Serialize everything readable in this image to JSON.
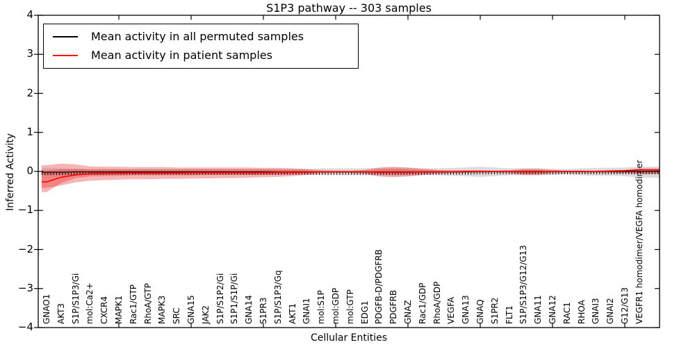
{
  "figure": {
    "title": "S1P3 pathway -- 303 samples",
    "xlabel": "Cellular Entities",
    "ylabel": "Inferred Activity",
    "ytick_labels": [
      "4",
      "3",
      "2",
      "1",
      "0",
      "−1",
      "−2",
      "−3",
      "−4"
    ],
    "legend": [
      {
        "label": "Mean activity in all permuted samples",
        "color": "#000000"
      },
      {
        "label": "Mean activity in patient samples",
        "color": "#ff0000"
      }
    ],
    "colors": {
      "axis": "#000000",
      "permuted_line": "#000000",
      "patient_line": "#ff0000",
      "permuted_band": "rgba(130,130,130,0.28)",
      "patient_band": "rgba(230,30,30,0.33)"
    }
  },
  "chart_data": {
    "type": "line",
    "title": "S1P3 pathway -- 303 samples",
    "xlabel": "Cellular Entities",
    "ylabel": "Inferred Activity",
    "ylim": [
      -4,
      4
    ],
    "yticks": [
      4,
      3,
      2,
      1,
      0,
      -1,
      -2,
      -3,
      -4
    ],
    "grid": false,
    "legend_position": "upper left",
    "xtick_mark_interval": 5,
    "categories": [
      "GNAO1",
      "AKT3",
      "S1P/S1P3/Gi",
      "mol:Ca2+",
      "CXCR4",
      "MAPK1",
      "Rac1/GTP",
      "RhoA/GTP",
      "MAPK3",
      "SRC",
      "GNA15",
      "JAK2",
      "S1P/S1P2/Gi",
      "S1P1/S1P/Gi",
      "GNA14",
      "S1PR3",
      "S1P/S1P3/Gq",
      "AKT1",
      "GNAI1",
      "mol:S1P",
      "mol:GDP",
      "mol:GTP",
      "EDG1",
      "PDGFB-D/PDGFRB",
      "PDGFRB",
      "GNAZ",
      "Rac1/GDP",
      "RhoA/GDP",
      "VEGFA",
      "GNA13",
      "GNAQ",
      "S1PR2",
      "FLT1",
      "S1P/S1P3/G12/G13",
      "GNA11",
      "GNA12",
      "RAC1",
      "RHOA",
      "GNAI3",
      "GNAI2",
      "G12/G13",
      "VEGFR1 homodimer/VEGFA homodimer"
    ],
    "series": [
      {
        "name": "Mean activity in all permuted samples",
        "color": "#000000",
        "values": [
          -0.02,
          -0.02,
          -0.01,
          -0.01,
          -0.01,
          -0.01,
          -0.01,
          -0.01,
          -0.01,
          -0.01,
          -0.01,
          -0.01,
          -0.01,
          -0.01,
          -0.01,
          -0.01,
          -0.01,
          -0.01,
          -0.01,
          -0.01,
          -0.01,
          -0.01,
          -0.01,
          -0.01,
          -0.01,
          -0.01,
          -0.01,
          -0.01,
          -0.01,
          -0.01,
          0,
          0,
          0,
          0,
          0,
          0,
          0,
          0,
          0,
          0,
          0,
          0
        ]
      },
      {
        "name": "Mean activity in patient samples",
        "color": "#ff0000",
        "values": [
          -0.27,
          -0.15,
          -0.09,
          -0.06,
          -0.05,
          -0.04,
          -0.04,
          -0.04,
          -0.04,
          -0.04,
          -0.03,
          -0.03,
          -0.03,
          -0.03,
          -0.03,
          -0.03,
          -0.02,
          -0.02,
          -0.02,
          -0.01,
          -0.01,
          -0.01,
          -0.01,
          -0.02,
          -0.02,
          -0.02,
          -0.01,
          -0.01,
          -0.01,
          0,
          0,
          0,
          0,
          -0.01,
          -0.01,
          0,
          0,
          0,
          0,
          0.01,
          0.02,
          0.04
        ]
      }
    ],
    "bands": [
      {
        "name": "permuted-samples-std-band",
        "color": "rgba(130,130,130,0.28)",
        "upper": [
          0.08,
          0.08,
          0.07,
          0.06,
          0.06,
          0.06,
          0.06,
          0.06,
          0.06,
          0.06,
          0.06,
          0.06,
          0.06,
          0.06,
          0.06,
          0.06,
          0.06,
          0.06,
          0.07,
          0.08,
          0.08,
          0.08,
          0.08,
          0.09,
          0.1,
          0.09,
          0.08,
          0.08,
          0.09,
          0.1,
          0.12,
          0.1,
          0.08,
          0.08,
          0.08,
          0.07,
          0.06,
          0.08,
          0.09,
          0.09,
          0.1,
          0.12
        ],
        "lower": [
          -0.1,
          -0.1,
          -0.09,
          -0.08,
          -0.08,
          -0.08,
          -0.08,
          -0.08,
          -0.08,
          -0.08,
          -0.08,
          -0.08,
          -0.08,
          -0.08,
          -0.08,
          -0.08,
          -0.08,
          -0.08,
          -0.09,
          -0.1,
          -0.1,
          -0.1,
          -0.1,
          -0.11,
          -0.12,
          -0.11,
          -0.1,
          -0.1,
          -0.11,
          -0.12,
          -0.14,
          -0.12,
          -0.1,
          -0.1,
          -0.1,
          -0.09,
          -0.08,
          -0.1,
          -0.11,
          -0.11,
          -0.12,
          -0.16
        ]
      },
      {
        "name": "patient-samples-std-band-outer",
        "color": "rgba(230,30,30,0.33)",
        "upper": [
          0.16,
          0.2,
          0.18,
          0.13,
          0.12,
          0.12,
          0.11,
          0.11,
          0.11,
          0.1,
          0.1,
          0.1,
          0.1,
          0.1,
          0.1,
          0.09,
          0.09,
          0.08,
          0.06,
          0.03,
          0.02,
          0.02,
          0.04,
          0.1,
          0.12,
          0.1,
          0.07,
          0.04,
          0.03,
          0.03,
          0.03,
          0.02,
          0.03,
          0.07,
          0.07,
          0.04,
          0.02,
          0.02,
          0.02,
          0.03,
          0.04,
          0.08
        ],
        "lower": [
          -0.42,
          -0.36,
          -0.28,
          -0.24,
          -0.22,
          -0.21,
          -0.2,
          -0.2,
          -0.19,
          -0.19,
          -0.18,
          -0.18,
          -0.17,
          -0.17,
          -0.16,
          -0.15,
          -0.14,
          -0.12,
          -0.09,
          -0.05,
          -0.04,
          -0.04,
          -0.06,
          -0.13,
          -0.15,
          -0.13,
          -0.09,
          -0.06,
          -0.05,
          -0.04,
          -0.04,
          -0.03,
          -0.04,
          -0.09,
          -0.09,
          -0.05,
          -0.04,
          -0.04,
          -0.04,
          -0.04,
          -0.05,
          -0.07
        ]
      },
      {
        "name": "patient-samples-std-band-inner",
        "color": "rgba(230,30,30,0.33)",
        "upper": [
          0.02,
          0.05,
          0.06,
          0.05,
          0.05,
          0.05,
          0.05,
          0.05,
          0.05,
          0.05,
          0.05,
          0.05,
          0.05,
          0.05,
          0.05,
          0.05,
          0.04,
          0.04,
          0.03,
          0.01,
          0.01,
          0.01,
          0.02,
          0.05,
          0.06,
          0.05,
          0.03,
          0.02,
          0.01,
          0.01,
          0.01,
          0.01,
          0.01,
          0.03,
          0.03,
          0.01,
          0.01,
          0.01,
          0.01,
          0.01,
          0.02,
          0.04
        ],
        "lower": [
          -0.53,
          -0.3,
          -0.17,
          -0.13,
          -0.12,
          -0.11,
          -0.1,
          -0.1,
          -0.1,
          -0.1,
          -0.1,
          -0.09,
          -0.09,
          -0.09,
          -0.09,
          -0.09,
          -0.08,
          -0.07,
          -0.05,
          -0.02,
          -0.02,
          -0.02,
          -0.03,
          -0.07,
          -0.08,
          -0.07,
          -0.05,
          -0.03,
          -0.02,
          -0.02,
          -0.02,
          -0.02,
          -0.02,
          -0.05,
          -0.05,
          -0.02,
          -0.02,
          -0.02,
          -0.02,
          -0.02,
          -0.03,
          -0.04
        ]
      }
    ]
  }
}
